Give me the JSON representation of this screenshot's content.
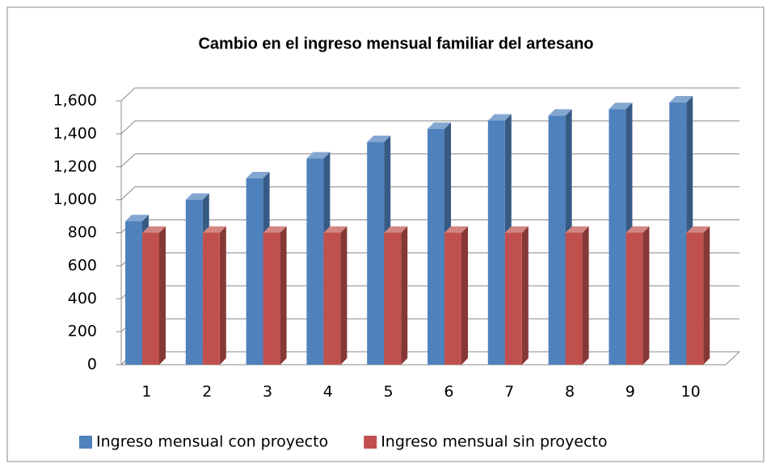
{
  "chart_data": {
    "type": "bar3d",
    "title": "Cambio en el ingreso mensual familiar del artesano",
    "categories": [
      "1",
      "2",
      "3",
      "4",
      "5",
      "6",
      "7",
      "8",
      "9",
      "10"
    ],
    "series": [
      {
        "name": "Ingreso mensual con proyecto",
        "color": "#4f81bd",
        "values": [
          870,
          1000,
          1130,
          1250,
          1350,
          1430,
          1480,
          1510,
          1550,
          1590
        ]
      },
      {
        "name": "Ingreso mensual sin proyecto",
        "color": "#c0504d",
        "values": [
          800,
          800,
          800,
          800,
          800,
          800,
          800,
          800,
          800,
          800
        ]
      }
    ],
    "ylim": [
      0,
      1600
    ],
    "yticks": [
      0,
      200,
      400,
      600,
      800,
      {
        "value": 1000,
        "label": "1,000"
      },
      {
        "value": 1200,
        "label": "1,200"
      },
      {
        "value": 1400,
        "label": "1,400"
      },
      {
        "value": 1600,
        "label": "1,600"
      }
    ],
    "grid": true,
    "legend": "bottom"
  }
}
